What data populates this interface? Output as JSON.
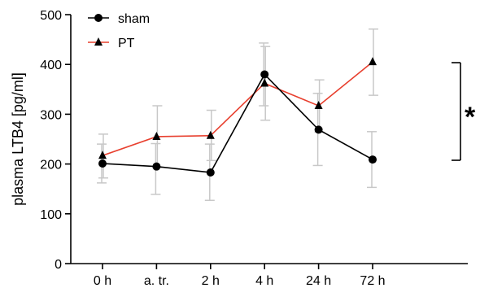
{
  "chart_data": {
    "type": "line",
    "categories": [
      "0 h",
      "a. tr.",
      "2 h",
      "4 h",
      "24 h",
      "72 h"
    ],
    "ylabel": "plasma LTB4 [pg/ml]",
    "ylim": [
      0,
      500
    ],
    "yticks": [
      "0",
      "100",
      "200",
      "300",
      "400",
      "500"
    ],
    "grid": false,
    "legend_position": "top-left",
    "series": [
      {
        "name": "sham",
        "color": "#000000",
        "marker": "circle",
        "values": [
          201,
          195,
          183,
          380,
          269,
          209
        ],
        "err_low": [
          162,
          139,
          127,
          317,
          197,
          153
        ],
        "err_high": [
          240,
          241,
          240,
          443,
          342,
          265
        ]
      },
      {
        "name": "PT",
        "color": "#e8402f",
        "marker": "triangle",
        "values": [
          217,
          255,
          257,
          362,
          317,
          405
        ],
        "err_low": [
          172,
          193,
          207,
          288,
          264,
          338
        ],
        "err_high": [
          260,
          317,
          308,
          436,
          369,
          471
        ]
      }
    ],
    "significance": {
      "label": "*",
      "between": [
        209,
        405
      ],
      "at": "72 h"
    }
  }
}
